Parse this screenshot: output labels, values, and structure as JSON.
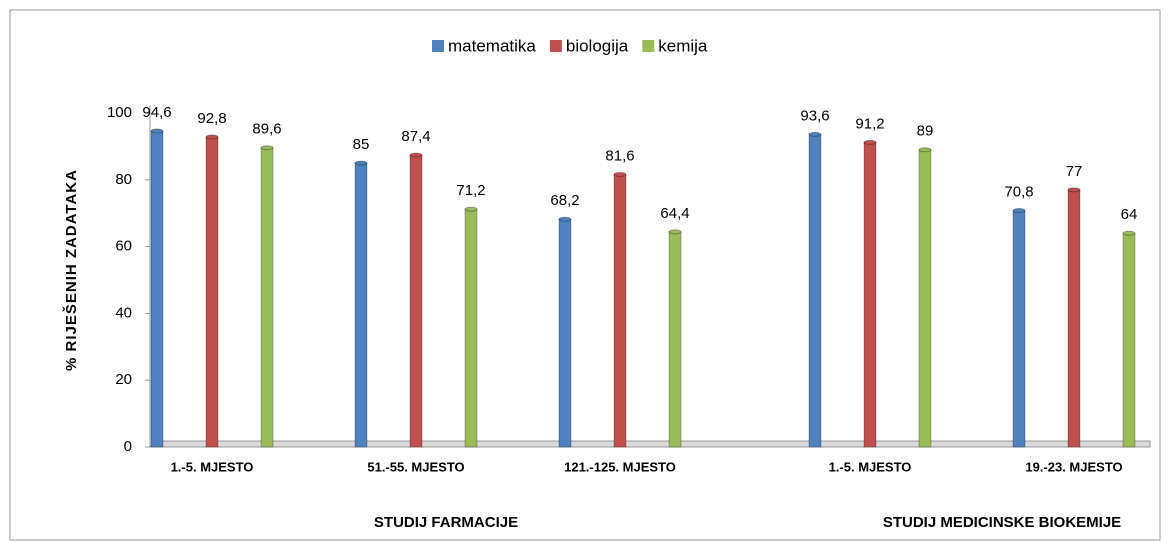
{
  "chart_data": {
    "type": "bar",
    "y_label": "% RIJEŠENIH ZADATAKA",
    "groups": [
      {
        "name": "STUDIJ FARMACIJE",
        "categories": [
          "1.-5. MJESTO",
          "51.-55. MJESTO",
          "121.-125. MJESTO"
        ]
      },
      {
        "name": "STUDIJ MEDICINSKE BIOKEMIJE",
        "categories": [
          "1.-5. MJESTO",
          "19.-23. MJESTO"
        ]
      }
    ],
    "series": [
      {
        "name": "matematika",
        "color": "#4f81bd",
        "values": [
          94.6,
          85,
          68.2,
          93.6,
          70.8
        ],
        "value_labels": [
          "94,6",
          "85",
          "68,2",
          "93,6",
          "70,8"
        ]
      },
      {
        "name": "biologija",
        "color": "#c0504d",
        "values": [
          92.8,
          87.4,
          81.6,
          91.2,
          77
        ],
        "value_labels": [
          "92,8",
          "87,4",
          "81,6",
          "91,2",
          "77"
        ]
      },
      {
        "name": "kemija",
        "color": "#9bbb59",
        "values": [
          89.6,
          71.2,
          64.4,
          89,
          64
        ],
        "value_labels": [
          "89,6",
          "71,2",
          "64,4",
          "89",
          "64"
        ]
      }
    ],
    "ylim": [
      0,
      100
    ],
    "yticks": [
      0,
      20,
      40,
      60,
      80,
      100
    ],
    "grid": false,
    "legend": "top"
  }
}
